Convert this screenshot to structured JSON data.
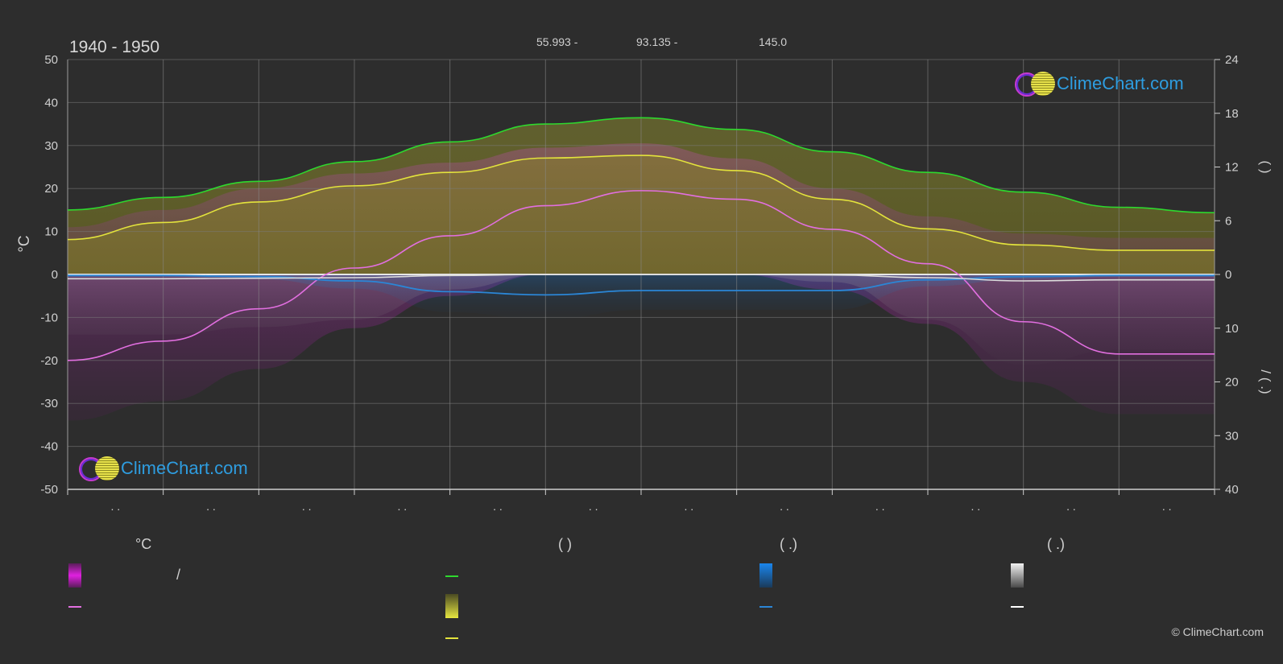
{
  "header": {
    "period": "1940 - 1950",
    "coordinates": [
      "55.993 -",
      "93.135 -",
      "145.0"
    ]
  },
  "chart_data": {
    "type": "area",
    "title": "",
    "left_axis": {
      "label": "°C",
      "range": [
        -50,
        50
      ],
      "ticks": [
        50,
        40,
        30,
        20,
        10,
        0,
        -10,
        -20,
        -30,
        -40,
        -50
      ]
    },
    "right_axis_top": {
      "label": "(   )",
      "range": [
        0,
        24
      ],
      "ticks": [
        24,
        18,
        12,
        6,
        0
      ]
    },
    "right_axis_bottom": {
      "label": "/ (   .)",
      "range": [
        0,
        40
      ],
      "ticks": [
        0,
        10,
        20,
        30,
        40
      ]
    },
    "x_ticks": [
      ". .",
      ". .",
      ". .",
      ". .",
      ". .",
      ". .",
      ". .",
      ". .",
      ". .",
      ". .",
      ". .",
      ". ."
    ],
    "months": 12,
    "series": [
      {
        "name": "daylight",
        "color": "#2ed82e",
        "axis": "right_hours",
        "values": [
          7.2,
          8.6,
          10.4,
          12.6,
          14.8,
          16.8,
          17.5,
          16.2,
          13.7,
          11.4,
          9.2,
          7.5,
          6.9
        ]
      },
      {
        "name": "sunshine",
        "color": "#e3e33c",
        "axis": "right_hours",
        "values": [
          3.9,
          5.8,
          8.1,
          9.9,
          11.4,
          13.0,
          13.3,
          11.6,
          8.4,
          5.1,
          3.3,
          2.7,
          2.7
        ]
      },
      {
        "name": "temp_max_mean",
        "color": "#f07ee8",
        "axis": "left_c",
        "values": [
          8.0,
          12.0,
          17.0,
          20.5,
          23.0,
          26.5,
          27.5,
          24.0,
          17.0,
          10.5,
          6.5,
          5.5,
          5.5
        ]
      },
      {
        "name": "temp_mean",
        "color": "#e26fe0",
        "axis": "left_c",
        "values": [
          -20.0,
          -15.5,
          -8.0,
          1.5,
          9.0,
          16.0,
          19.5,
          17.5,
          10.5,
          2.5,
          -11.0,
          -18.5,
          -18.5
        ]
      },
      {
        "name": "rain",
        "color": "#2b86d6",
        "axis": "right_mm",
        "values": [
          0.2,
          0.2,
          0.4,
          1.2,
          3.2,
          3.8,
          3.0,
          3.0,
          3.0,
          1.0,
          0.4,
          0.2,
          0.2
        ]
      },
      {
        "name": "snow",
        "color": "#e6e6e6",
        "axis": "right_mm",
        "values": [
          0.8,
          0.8,
          0.7,
          0.6,
          0.2,
          0.0,
          0.0,
          0.0,
          0.1,
          0.6,
          1.2,
          1.0,
          1.0
        ]
      }
    ],
    "grid": true
  },
  "legend": {
    "col1": {
      "title": "°C",
      "text": "/"
    },
    "col2": {
      "title": "(          )"
    },
    "col3": {
      "title": "(   .)"
    },
    "col4": {
      "title": "(   .)"
    },
    "colors": {
      "temp_range": "#d020d0",
      "temp_mean": "#e26fe0",
      "daylight": "#2ed82e",
      "sunshine": "#e3e33c",
      "sunshine_line": "#e3e33c",
      "rain": "#1a7fe0",
      "rain_line": "#2b86d6",
      "snow": "#e8e8e8",
      "snow_line": "#ffffff"
    }
  },
  "branding": {
    "logo_text": "ClimeChart.com",
    "copyright": "© ClimeChart.com"
  }
}
